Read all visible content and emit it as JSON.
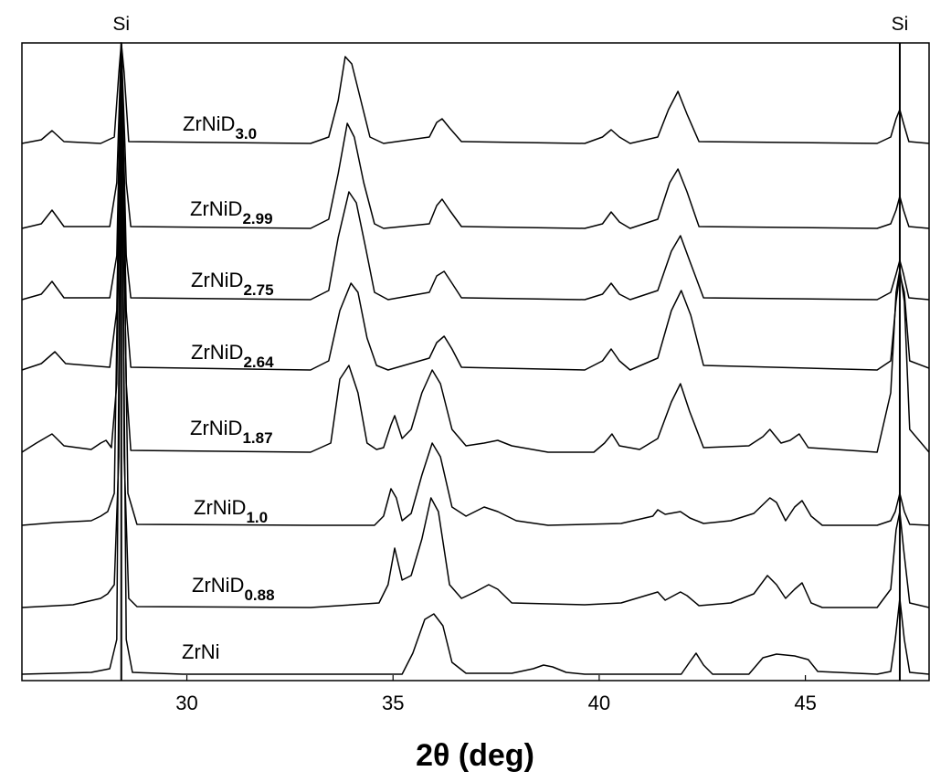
{
  "chart_data": {
    "type": "line",
    "xlabel": "2θ (deg)",
    "xlim": [
      26.0,
      48.0
    ],
    "xticks": [
      30,
      35,
      40,
      45
    ],
    "ylim": [
      0,
      698
    ],
    "annotations": [
      {
        "text": "Si",
        "x": 28.41
      },
      {
        "text": "Si",
        "x": 47.29
      }
    ],
    "series": [
      {
        "name": "ZrNiD",
        "subscript": "3.0",
        "color": "#000000",
        "x": [
          26.0,
          26.47,
          26.73,
          27.02,
          27.91,
          28.24,
          28.35,
          28.41,
          28.48,
          28.59,
          33.0,
          33.44,
          33.67,
          33.84,
          34.0,
          34.22,
          34.44,
          34.77,
          35.88,
          36.06,
          36.19,
          36.37,
          36.66,
          39.65,
          40.08,
          40.29,
          40.49,
          40.75,
          41.42,
          41.68,
          41.91,
          42.13,
          42.42,
          46.74,
          47.07,
          47.2,
          47.29,
          47.38,
          47.51,
          48.0
        ],
        "values": [
          588,
          592,
          602,
          590,
          588,
          595,
          665,
          698,
          665,
          590,
          588,
          595,
          635,
          683,
          675,
          635,
          595,
          588,
          595,
          611,
          615,
          605,
          590,
          588,
          595,
          603,
          595,
          588,
          595,
          625,
          645,
          620,
          590,
          588,
          595,
          615,
          625,
          610,
          590,
          588
        ]
      },
      {
        "name": "ZrNiD",
        "subscript": "2.99",
        "color": "#000000",
        "x": [
          26.0,
          26.47,
          26.73,
          27.02,
          28.13,
          28.3,
          28.41,
          28.53,
          28.64,
          33.0,
          33.44,
          33.67,
          33.89,
          34.06,
          34.29,
          34.55,
          34.77,
          35.88,
          36.06,
          36.19,
          36.37,
          36.66,
          39.65,
          40.08,
          40.29,
          40.49,
          40.75,
          41.42,
          41.71,
          41.91,
          42.13,
          42.42,
          46.74,
          47.07,
          47.2,
          47.29,
          47.38,
          47.51,
          48.0
        ],
        "values": [
          495,
          500,
          515,
          497,
          497,
          545,
          698,
          545,
          497,
          495,
          505,
          555,
          610,
          595,
          545,
          500,
          495,
          500,
          520,
          527,
          515,
          497,
          495,
          500,
          513,
          502,
          495,
          505,
          545,
          560,
          535,
          497,
          495,
          500,
          515,
          530,
          515,
          497,
          495
        ]
      },
      {
        "name": "ZrNiD",
        "subscript": "2.75",
        "color": "#000000",
        "x": [
          26.0,
          26.47,
          26.73,
          27.02,
          28.13,
          28.3,
          28.41,
          28.53,
          28.64,
          33.0,
          33.44,
          33.67,
          33.93,
          34.11,
          34.33,
          34.55,
          34.88,
          35.88,
          36.06,
          36.24,
          36.43,
          36.66,
          39.65,
          40.08,
          40.29,
          40.49,
          40.75,
          41.42,
          41.75,
          41.97,
          42.19,
          42.53,
          46.74,
          47.07,
          47.2,
          47.29,
          47.38,
          47.51,
          48.0
        ],
        "values": [
          417,
          423,
          437,
          419,
          419,
          465,
          695,
          465,
          419,
          417,
          427,
          485,
          535,
          523,
          475,
          425,
          417,
          425,
          443,
          448,
          435,
          419,
          417,
          423,
          435,
          423,
          417,
          427,
          470,
          487,
          460,
          419,
          417,
          425,
          445,
          460,
          445,
          419,
          417
        ]
      },
      {
        "name": "ZrNiD",
        "subscript": "2.64",
        "color": "#000000",
        "x": [
          26.0,
          26.47,
          26.8,
          27.06,
          28.13,
          28.3,
          28.41,
          28.53,
          28.64,
          33.0,
          33.44,
          33.71,
          33.98,
          34.15,
          34.37,
          34.6,
          34.88,
          35.88,
          36.06,
          36.24,
          36.43,
          36.66,
          39.65,
          40.08,
          40.29,
          40.49,
          40.75,
          41.42,
          41.75,
          41.99,
          42.22,
          42.53,
          46.74,
          47.07,
          47.2,
          47.29,
          47.4,
          47.53,
          48.0
        ],
        "values": [
          340,
          347,
          360,
          347,
          343,
          405,
          685,
          405,
          343,
          340,
          350,
          405,
          435,
          425,
          375,
          345,
          340,
          353,
          370,
          377,
          363,
          343,
          340,
          350,
          363,
          350,
          340,
          353,
          405,
          427,
          400,
          345,
          340,
          350,
          415,
          445,
          425,
          350,
          342
        ]
      },
      {
        "name": "ZrNiD",
        "subscript": "1.87",
        "color": "#000000",
        "x": [
          26.0,
          26.35,
          26.73,
          27.02,
          27.68,
          27.91,
          28.04,
          28.17,
          28.3,
          28.41,
          28.53,
          28.64,
          33.0,
          33.49,
          33.71,
          33.93,
          34.15,
          34.37,
          34.6,
          34.77,
          34.95,
          35.04,
          35.22,
          35.44,
          35.7,
          35.95,
          36.15,
          36.43,
          36.77,
          37.21,
          37.54,
          37.88,
          38.76,
          39.87,
          40.13,
          40.31,
          40.49,
          40.98,
          41.42,
          41.75,
          41.97,
          42.19,
          42.53,
          43.63,
          43.97,
          44.14,
          44.41,
          44.63,
          44.85,
          45.07,
          46.74,
          47.07,
          47.2,
          47.29,
          47.4,
          47.53,
          48.0
        ],
        "values": [
          250,
          260,
          270,
          257,
          253,
          260,
          263,
          255,
          325,
          685,
          325,
          252,
          250,
          260,
          330,
          345,
          315,
          260,
          253,
          255,
          280,
          290,
          265,
          275,
          315,
          340,
          325,
          275,
          257,
          260,
          263,
          257,
          250,
          250,
          260,
          270,
          257,
          253,
          265,
          305,
          325,
          295,
          255,
          257,
          267,
          275,
          260,
          263,
          270,
          255,
          250,
          315,
          425,
          450,
          415,
          275,
          250
        ]
      },
      {
        "name": "ZrNiD",
        "subscript": "1.0",
        "color": "#000000",
        "x": [
          26.0,
          26.8,
          27.68,
          27.91,
          28.08,
          28.24,
          28.41,
          28.57,
          28.79,
          33.0,
          34.55,
          34.77,
          34.95,
          35.08,
          35.22,
          35.44,
          35.7,
          35.95,
          36.15,
          36.43,
          36.77,
          37.21,
          37.54,
          37.99,
          38.76,
          40.53,
          41.3,
          41.42,
          41.6,
          41.97,
          42.2,
          42.53,
          43.19,
          43.75,
          44.14,
          44.3,
          44.52,
          44.74,
          44.92,
          45.14,
          45.41,
          46.74,
          47.07,
          47.18,
          47.29,
          47.4,
          47.53,
          48.0
        ],
        "values": [
          170,
          173,
          175,
          180,
          185,
          205,
          685,
          205,
          171,
          170,
          170,
          180,
          210,
          200,
          175,
          183,
          225,
          260,
          245,
          190,
          180,
          190,
          185,
          175,
          170,
          172,
          180,
          187,
          182,
          185,
          178,
          172,
          175,
          183,
          200,
          195,
          175,
          190,
          197,
          180,
          170,
          170,
          175,
          185,
          205,
          185,
          171,
          170
        ]
      },
      {
        "name": "ZrNiD",
        "subscript": "0.88",
        "color": "#000000",
        "x": [
          26.0,
          27.24,
          27.91,
          28.08,
          28.24,
          28.35,
          28.41,
          28.48,
          28.59,
          28.79,
          33.0,
          34.66,
          34.88,
          35.04,
          35.22,
          35.44,
          35.7,
          35.92,
          36.1,
          36.37,
          36.66,
          36.99,
          37.32,
          37.54,
          37.88,
          39.65,
          40.53,
          41.42,
          41.6,
          41.97,
          42.13,
          42.42,
          43.19,
          43.75,
          44.08,
          44.3,
          44.52,
          44.74,
          44.92,
          45.14,
          45.41,
          46.74,
          47.07,
          47.2,
          47.29,
          47.38,
          47.53,
          48.0
        ],
        "values": [
          80,
          83,
          90,
          95,
          105,
          245,
          685,
          245,
          90,
          81,
          80,
          85,
          105,
          145,
          110,
          115,
          155,
          200,
          185,
          105,
          90,
          97,
          105,
          100,
          85,
          83,
          85,
          97,
          88,
          97,
          93,
          82,
          85,
          95,
          115,
          105,
          90,
          100,
          107,
          85,
          80,
          80,
          100,
          165,
          185,
          145,
          85,
          80
        ]
      },
      {
        "name": "ZrNi",
        "color": "#000000",
        "x": [
          26.0,
          27.68,
          28.13,
          28.3,
          28.41,
          28.53,
          28.68,
          29.9,
          35.22,
          35.48,
          35.77,
          35.99,
          36.21,
          36.43,
          36.77,
          37.88,
          38.4,
          38.65,
          38.87,
          39.2,
          39.65,
          41.99,
          42.19,
          42.35,
          42.53,
          42.75,
          43.63,
          43.97,
          44.3,
          44.74,
          45.07,
          45.3,
          46.74,
          47.07,
          47.18,
          47.29,
          47.4,
          47.53,
          48.0
        ],
        "values": [
          7,
          9,
          13,
          45,
          685,
          45,
          9,
          7,
          7,
          30,
          67,
          73,
          60,
          20,
          8,
          8,
          13,
          17,
          15,
          9,
          7,
          7,
          20,
          30,
          17,
          7,
          7,
          25,
          29,
          27,
          23,
          10,
          7,
          10,
          45,
          90,
          45,
          9,
          7
        ]
      }
    ]
  }
}
